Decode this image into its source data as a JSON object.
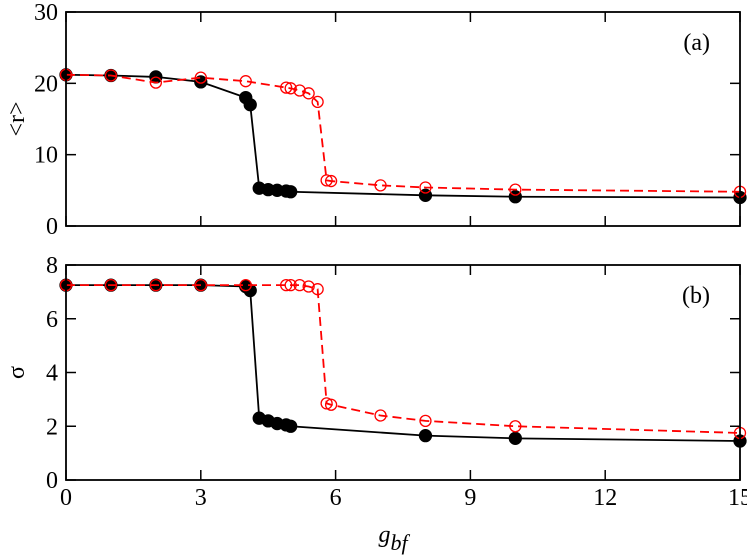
{
  "chart_data": [
    {
      "type": "line",
      "annotation": "(a)",
      "ylabel": "<r>",
      "xlim": [
        0,
        15
      ],
      "xticks": [
        0,
        3,
        6,
        9,
        12,
        15
      ],
      "ylim": [
        0,
        30
      ],
      "yticks": [
        0,
        10,
        20,
        30
      ],
      "series": [
        {
          "color": "#000000",
          "marker": "filled",
          "linestyle": "solid",
          "x": [
            0,
            1,
            2,
            3,
            4,
            4.1,
            4.3,
            4.5,
            4.7,
            4.9,
            5,
            8,
            10,
            15
          ],
          "values": [
            21.2,
            21.1,
            20.9,
            20.2,
            18.0,
            17.0,
            5.3,
            5.1,
            5.0,
            4.9,
            4.8,
            4.3,
            4.1,
            4.0
          ]
        },
        {
          "color": "#ff0000",
          "marker": "open",
          "linestyle": "dashed",
          "x": [
            0,
            1,
            2,
            3,
            4,
            4.9,
            5,
            5.2,
            5.4,
            5.6,
            5.8,
            5.9,
            7,
            8,
            10,
            15
          ],
          "values": [
            21.2,
            21.1,
            20.1,
            20.8,
            20.3,
            19.4,
            19.3,
            19.0,
            18.6,
            17.4,
            6.4,
            6.3,
            5.7,
            5.4,
            5.1,
            4.8
          ]
        }
      ]
    },
    {
      "type": "line",
      "annotation": "(b)",
      "ylabel": "σ",
      "xlabel": "g",
      "xlabel_subscript": "bf",
      "xlim": [
        0,
        15
      ],
      "xticks": [
        0,
        3,
        6,
        9,
        12,
        15
      ],
      "ylim": [
        0,
        8
      ],
      "yticks": [
        0,
        2,
        4,
        6,
        8
      ],
      "series": [
        {
          "color": "#000000",
          "marker": "filled",
          "linestyle": "solid",
          "x": [
            0,
            1,
            2,
            3,
            4,
            4.1,
            4.3,
            4.5,
            4.7,
            4.9,
            5,
            8,
            10,
            15
          ],
          "values": [
            7.25,
            7.25,
            7.25,
            7.25,
            7.2,
            7.05,
            2.3,
            2.2,
            2.1,
            2.05,
            2.0,
            1.65,
            1.55,
            1.45
          ]
        },
        {
          "color": "#ff0000",
          "marker": "open",
          "linestyle": "dashed",
          "x": [
            0,
            1,
            2,
            3,
            4,
            4.9,
            5,
            5.2,
            5.4,
            5.6,
            5.8,
            5.9,
            7,
            8,
            10,
            15
          ],
          "values": [
            7.25,
            7.25,
            7.25,
            7.25,
            7.25,
            7.25,
            7.25,
            7.25,
            7.2,
            7.1,
            2.85,
            2.8,
            2.4,
            2.2,
            2.0,
            1.75
          ]
        }
      ]
    }
  ]
}
